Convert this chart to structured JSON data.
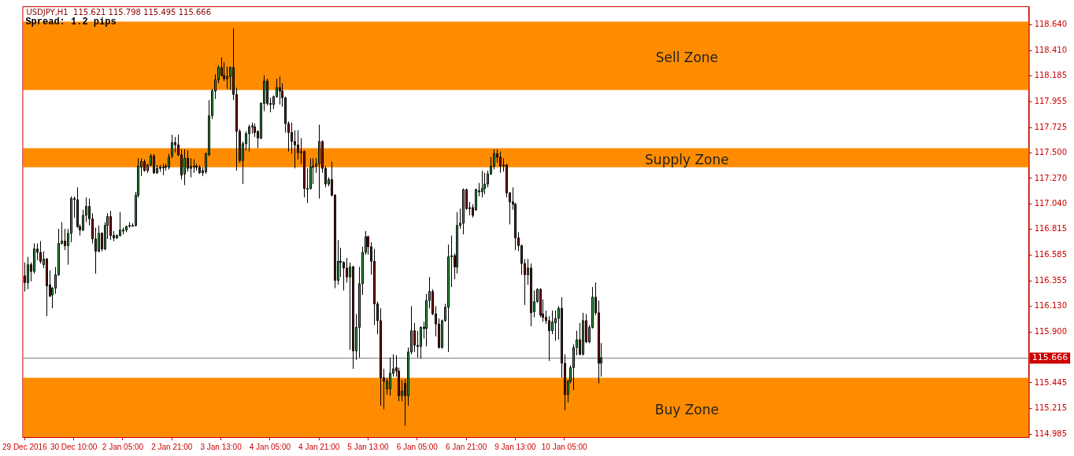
{
  "chart_data": {
    "type": "candlestick",
    "title": "USDJPY,H1  115.621 115.798 115.495 115.666",
    "annotations": [
      "Spread: 1.2 pips"
    ],
    "categories": [
      "29 Dec 2016",
      null,
      null,
      null,
      null,
      null,
      null,
      null,
      null,
      null,
      null,
      null,
      null,
      null,
      null,
      null,
      "30 Dec 10:00",
      null,
      null,
      null,
      null,
      null,
      null,
      null,
      null,
      null,
      null,
      null,
      null,
      null,
      null,
      null,
      "2 Jan 05:00",
      null,
      null,
      null,
      null,
      null,
      null,
      null,
      null,
      null,
      null,
      null,
      null,
      null,
      null,
      null,
      "2 Jan 21:00",
      null,
      null,
      null,
      null,
      null,
      null,
      null,
      null,
      null,
      null,
      null,
      null,
      null,
      null,
      null,
      "3 Jan 13:00",
      null,
      null,
      null,
      null,
      null,
      null,
      null,
      null,
      null,
      null,
      null,
      null,
      null,
      null,
      null,
      "4 Jan 05:00",
      null,
      null,
      null,
      null,
      null,
      null,
      null,
      null,
      null,
      null,
      null,
      null,
      null,
      null,
      null,
      "4 Jan 21:00",
      null,
      null,
      null,
      null,
      null,
      null,
      null,
      null,
      null,
      null,
      null,
      null,
      null,
      null,
      null,
      "5 Jan 13:00",
      null,
      null,
      null,
      null,
      null,
      null,
      null,
      null,
      null,
      null,
      null,
      null,
      null,
      null,
      null,
      "6 Jan 05:00",
      null,
      null,
      null,
      null,
      null,
      null,
      null,
      null,
      null,
      null,
      null,
      null,
      null,
      null,
      null,
      "6 Jan 21:00",
      null,
      null,
      null,
      null,
      null,
      null,
      null,
      null,
      null,
      null,
      null,
      null,
      null,
      null,
      null,
      "9 Jan 13:00",
      null,
      null,
      null,
      null,
      null,
      null,
      null,
      null,
      null,
      null,
      null,
      null,
      null,
      null,
      null,
      "10 Jan 05:00",
      null,
      null,
      null,
      null,
      null,
      null,
      null,
      null,
      null,
      null,
      null,
      null,
      null,
      null,
      null,
      null,
      null,
      null,
      null,
      null,
      null,
      null,
      null,
      null,
      null,
      null,
      null,
      null,
      null,
      null,
      null,
      null,
      null,
      null,
      null,
      null,
      null,
      null,
      null,
      null,
      null,
      null,
      null,
      null,
      null,
      null,
      null,
      null,
      null,
      null,
      null,
      null,
      null,
      null,
      null,
      null,
      null,
      null,
      null,
      null,
      null,
      null,
      null,
      null,
      null,
      null,
      null,
      null,
      null,
      null,
      null,
      null,
      null,
      null,
      null,
      null,
      null,
      null,
      null,
      null,
      null,
      null,
      null,
      null,
      null,
      null,
      null,
      null,
      null,
      null,
      null,
      null,
      null,
      null,
      null,
      null,
      null,
      null,
      null,
      null,
      null,
      null,
      null,
      null,
      null,
      null,
      null,
      null,
      null,
      null,
      null,
      null,
      null,
      null,
      null,
      null,
      null,
      null,
      null,
      null,
      null,
      null,
      null,
      null,
      null,
      null,
      null,
      null,
      null,
      null,
      null,
      null,
      null,
      null,
      null,
      null,
      null,
      null,
      null,
      null,
      null,
      null,
      null,
      null,
      null,
      null,
      null,
      null,
      null,
      null,
      null
    ],
    "ohlc": [
      [
        116.4,
        116.52,
        116.26,
        116.34
      ],
      [
        116.34,
        116.57,
        116.28,
        116.5
      ],
      [
        116.5,
        116.52,
        116.35,
        116.44
      ],
      [
        116.44,
        116.69,
        116.42,
        116.64
      ],
      [
        116.64,
        116.69,
        116.54,
        116.61
      ],
      [
        116.61,
        116.71,
        116.51,
        116.53
      ],
      [
        116.5,
        116.62,
        116.47,
        116.55
      ],
      [
        116.55,
        116.56,
        116.04,
        116.31
      ],
      [
        116.32,
        116.45,
        116.21,
        116.22
      ],
      [
        116.23,
        116.3,
        116.11,
        116.29
      ],
      [
        116.29,
        116.48,
        116.24,
        116.41
      ],
      [
        116.41,
        116.82,
        116.4,
        116.69
      ],
      [
        116.69,
        116.88,
        116.68,
        116.71
      ],
      [
        116.71,
        116.82,
        116.63,
        116.67
      ],
      [
        116.67,
        116.82,
        116.5,
        116.78
      ],
      [
        116.78,
        117.11,
        116.7,
        117.09
      ],
      [
        117.08,
        117.11,
        116.92,
        117.09
      ],
      [
        117.08,
        117.19,
        116.83,
        116.84
      ],
      [
        116.84,
        116.86,
        116.76,
        116.81
      ],
      [
        116.81,
        116.99,
        116.8,
        116.94
      ],
      [
        116.94,
        117.1,
        116.88,
        117.02
      ],
      [
        117.02,
        117.09,
        116.85,
        116.91
      ],
      [
        116.91,
        116.96,
        116.69,
        116.73
      ],
      [
        116.73,
        116.83,
        116.42,
        116.62
      ],
      [
        116.62,
        116.85,
        116.61,
        116.78
      ],
      [
        116.78,
        116.79,
        116.62,
        116.64
      ],
      [
        116.64,
        116.88,
        116.63,
        116.85
      ],
      [
        116.85,
        116.96,
        116.73,
        116.93
      ],
      [
        116.93,
        116.98,
        116.72,
        116.76
      ],
      [
        116.76,
        116.8,
        116.71,
        116.74
      ],
      [
        116.74,
        116.77,
        116.73,
        116.76
      ],
      [
        116.76,
        116.97,
        116.75,
        116.81
      ],
      [
        116.8,
        116.83,
        116.77,
        116.81
      ],
      [
        116.81,
        116.85,
        116.79,
        116.84
      ],
      [
        116.85,
        116.88,
        116.83,
        116.85
      ],
      [
        116.85,
        116.87,
        116.84,
        116.85
      ],
      [
        116.85,
        117.15,
        116.84,
        117.12
      ],
      [
        117.12,
        117.45,
        117.1,
        117.38
      ],
      [
        117.37,
        117.45,
        117.29,
        117.42
      ],
      [
        117.42,
        117.44,
        117.33,
        117.34
      ],
      [
        117.34,
        117.4,
        117.32,
        117.39
      ],
      [
        117.39,
        117.49,
        117.38,
        117.47
      ],
      [
        117.47,
        117.49,
        117.31,
        117.32
      ],
      [
        117.32,
        117.39,
        117.31,
        117.36
      ],
      [
        117.36,
        117.39,
        117.33,
        117.37
      ],
      [
        117.37,
        117.4,
        117.3,
        117.37
      ],
      [
        117.37,
        117.4,
        117.34,
        117.38
      ],
      [
        117.37,
        117.49,
        117.35,
        117.46
      ],
      [
        117.47,
        117.66,
        117.45,
        117.59
      ],
      [
        117.59,
        117.64,
        117.5,
        117.57
      ],
      [
        117.57,
        117.66,
        117.47,
        117.48
      ],
      [
        117.48,
        117.53,
        117.26,
        117.3
      ],
      [
        117.31,
        117.53,
        117.21,
        117.45
      ],
      [
        117.45,
        117.52,
        117.33,
        117.36
      ],
      [
        117.36,
        117.45,
        117.28,
        117.38
      ],
      [
        117.38,
        117.44,
        117.32,
        117.38
      ],
      [
        117.38,
        117.4,
        117.34,
        117.37
      ],
      [
        117.37,
        117.39,
        117.31,
        117.32
      ],
      [
        117.34,
        117.37,
        117.29,
        117.32
      ],
      [
        117.33,
        117.5,
        117.31,
        117.49
      ],
      [
        117.48,
        117.97,
        117.47,
        117.83
      ],
      [
        117.83,
        118.07,
        117.8,
        118.05
      ],
      [
        118.05,
        118.2,
        117.98,
        118.15
      ],
      [
        118.15,
        118.28,
        118.12,
        118.26
      ],
      [
        118.26,
        118.35,
        118.18,
        118.19
      ],
      [
        118.19,
        118.31,
        118.14,
        118.16
      ],
      [
        118.16,
        118.27,
        118.07,
        118.18
      ],
      [
        118.18,
        118.27,
        118.06,
        118.26
      ],
      [
        118.26,
        118.61,
        117.97,
        118.02
      ],
      [
        118.02,
        118.08,
        117.34,
        117.69
      ],
      [
        117.69,
        117.71,
        117.41,
        117.43
      ],
      [
        117.43,
        117.6,
        117.22,
        117.58
      ],
      [
        117.58,
        117.69,
        117.52,
        117.67
      ],
      [
        117.67,
        117.75,
        117.51,
        117.73
      ],
      [
        117.73,
        117.77,
        117.67,
        117.74
      ],
      [
        117.73,
        117.76,
        117.64,
        117.68
      ],
      [
        117.69,
        117.7,
        117.54,
        117.63
      ],
      [
        117.63,
        117.95,
        117.62,
        117.94
      ],
      [
        117.94,
        118.19,
        117.87,
        118.14
      ],
      [
        118.14,
        118.16,
        117.92,
        117.94
      ],
      [
        117.94,
        117.99,
        117.86,
        117.93
      ],
      [
        117.93,
        118.01,
        117.89,
        118.0
      ],
      [
        118.0,
        118.16,
        117.99,
        118.08
      ],
      [
        118.08,
        118.18,
        117.93,
        118.05
      ],
      [
        118.05,
        118.12,
        117.91,
        117.99
      ],
      [
        117.99,
        118.0,
        117.68,
        117.76
      ],
      [
        117.76,
        117.78,
        117.51,
        117.68
      ],
      [
        117.68,
        117.77,
        117.49,
        117.6
      ],
      [
        117.6,
        117.7,
        117.36,
        117.57
      ],
      [
        117.57,
        117.7,
        117.44,
        117.5
      ],
      [
        117.5,
        117.63,
        117.4,
        117.51
      ],
      [
        117.51,
        117.52,
        117.1,
        117.18
      ],
      [
        117.18,
        117.36,
        117.05,
        117.18
      ],
      [
        117.18,
        117.45,
        117.17,
        117.37
      ],
      [
        117.37,
        117.45,
        117.22,
        117.38
      ],
      [
        117.38,
        117.45,
        117.32,
        117.4
      ],
      [
        117.4,
        117.75,
        117.09,
        117.6
      ],
      [
        117.6,
        117.61,
        117.32,
        117.36
      ],
      [
        117.36,
        117.38,
        117.19,
        117.22
      ],
      [
        117.22,
        117.28,
        117.2,
        117.26
      ],
      [
        117.26,
        117.42,
        117.11,
        117.12
      ],
      [
        117.12,
        117.13,
        116.29,
        116.36
      ],
      [
        116.36,
        116.72,
        116.32,
        116.53
      ],
      [
        116.53,
        116.65,
        116.39,
        116.52
      ],
      [
        116.52,
        116.53,
        116.27,
        116.47
      ],
      [
        116.47,
        116.56,
        116.34,
        116.39
      ],
      [
        116.39,
        116.52,
        115.74,
        116.48
      ],
      [
        116.48,
        116.49,
        115.57,
        115.73
      ],
      [
        115.73,
        116.06,
        115.65,
        115.94
      ],
      [
        115.94,
        116.48,
        115.67,
        116.33
      ],
      [
        116.33,
        116.66,
        116.23,
        116.61
      ],
      [
        116.61,
        116.8,
        116.59,
        116.75
      ],
      [
        116.75,
        116.76,
        116.59,
        116.66
      ],
      [
        116.66,
        116.7,
        116.41,
        116.53
      ],
      [
        116.53,
        116.64,
        115.96,
        116.15
      ],
      [
        116.15,
        116.17,
        115.88,
        116.0
      ],
      [
        116.0,
        116.11,
        115.24,
        115.49
      ],
      [
        115.49,
        115.57,
        115.21,
        115.46
      ],
      [
        115.39,
        115.49,
        115.34,
        115.46
      ],
      [
        115.39,
        115.67,
        115.33,
        115.53
      ],
      [
        115.53,
        115.7,
        115.5,
        115.57
      ],
      [
        115.58,
        115.69,
        115.5,
        115.55
      ],
      [
        115.55,
        115.58,
        115.28,
        115.33
      ],
      [
        115.33,
        115.47,
        115.28,
        115.37
      ],
      [
        115.44,
        115.48,
        115.06,
        115.33
      ],
      [
        115.33,
        115.76,
        115.24,
        115.72
      ],
      [
        115.72,
        116.13,
        115.7,
        115.91
      ],
      [
        115.91,
        115.98,
        115.72,
        115.78
      ],
      [
        115.78,
        115.91,
        115.67,
        115.77
      ],
      [
        115.77,
        115.95,
        115.66,
        115.94
      ],
      [
        115.94,
        115.99,
        115.84,
        115.93
      ],
      [
        115.93,
        116.24,
        115.77,
        116.18
      ],
      [
        116.18,
        116.39,
        116.11,
        116.26
      ],
      [
        116.26,
        116.28,
        116.05,
        116.06
      ],
      [
        116.06,
        116.13,
        115.86,
        115.97
      ],
      [
        115.97,
        116.02,
        115.75,
        115.76
      ],
      [
        115.76,
        116.01,
        115.75,
        116.0
      ],
      [
        116.0,
        116.15,
        115.99,
        116.12
      ],
      [
        116.12,
        116.68,
        115.72,
        116.57
      ],
      [
        116.57,
        116.76,
        116.3,
        116.58
      ],
      [
        116.58,
        116.6,
        116.37,
        116.48
      ],
      [
        116.48,
        116.97,
        116.42,
        116.85
      ],
      [
        116.85,
        117.0,
        116.82,
        116.87
      ],
      [
        116.87,
        117.18,
        116.77,
        117.17
      ],
      [
        117.17,
        117.18,
        116.99,
        117.0
      ],
      [
        117.0,
        117.06,
        116.94,
        117.01
      ],
      [
        117.01,
        117.04,
        116.92,
        116.94
      ],
      [
        116.99,
        117.18,
        116.98,
        117.17
      ],
      [
        117.15,
        117.23,
        117.11,
        117.16
      ],
      [
        117.15,
        117.34,
        117.1,
        117.18
      ],
      [
        117.18,
        117.32,
        117.13,
        117.22
      ],
      [
        117.22,
        117.34,
        117.19,
        117.31
      ],
      [
        117.31,
        117.46,
        117.3,
        117.38
      ],
      [
        117.38,
        117.53,
        117.35,
        117.49
      ],
      [
        117.49,
        117.53,
        117.41,
        117.46
      ],
      [
        117.46,
        117.51,
        117.32,
        117.38
      ],
      [
        117.38,
        117.45,
        117.33,
        117.39
      ],
      [
        117.39,
        117.4,
        117.1,
        117.14
      ],
      [
        117.14,
        117.15,
        116.86,
        117.06
      ],
      [
        117.06,
        117.19,
        116.99,
        117.04
      ],
      [
        117.04,
        117.05,
        116.63,
        116.74
      ],
      [
        116.74,
        116.79,
        116.62,
        116.67
      ],
      [
        116.67,
        116.68,
        116.41,
        116.51
      ],
      [
        116.51,
        116.55,
        116.14,
        116.41
      ],
      [
        116.41,
        116.55,
        116.32,
        116.47
      ],
      [
        116.47,
        116.51,
        115.95,
        116.07
      ],
      [
        116.08,
        116.27,
        116.03,
        116.17
      ],
      [
        116.17,
        116.29,
        116.16,
        116.28
      ],
      [
        116.28,
        116.29,
        116.03,
        116.05
      ],
      [
        116.06,
        116.19,
        115.99,
        116.03
      ],
      [
        116.03,
        116.09,
        115.97,
        116.0
      ],
      [
        116.0,
        116.04,
        115.64,
        115.91
      ],
      [
        115.91,
        116.09,
        115.88,
        115.99
      ],
      [
        115.98,
        116.09,
        115.82,
        116.02
      ],
      [
        116.02,
        116.13,
        115.83,
        116.11
      ],
      [
        116.11,
        116.21,
        115.49,
        115.62
      ],
      [
        115.62,
        115.7,
        115.2,
        115.34
      ],
      [
        115.34,
        115.47,
        115.27,
        115.46
      ],
      [
        115.46,
        115.6,
        115.44,
        115.58
      ],
      [
        115.58,
        115.79,
        115.38,
        115.76
      ],
      [
        115.76,
        115.91,
        115.69,
        115.83
      ],
      [
        115.83,
        115.98,
        115.69,
        115.7
      ],
      [
        115.7,
        116.07,
        115.69,
        116.0
      ],
      [
        116.0,
        116.06,
        115.8,
        115.81
      ],
      [
        115.81,
        115.96,
        115.8,
        115.94
      ],
      [
        115.94,
        116.3,
        115.93,
        116.21
      ],
      [
        116.21,
        116.34,
        116.05,
        116.07
      ],
      [
        116.07,
        116.18,
        115.44,
        115.62
      ],
      [
        115.62,
        115.8,
        115.5,
        115.67
      ],
      null,
      null,
      null,
      null,
      null,
      null,
      null,
      null,
      null,
      null,
      null,
      null,
      null,
      null,
      null,
      null,
      null,
      null,
      null,
      null,
      null,
      null,
      null,
      null,
      null,
      null,
      null,
      null,
      null,
      null,
      null,
      null,
      null,
      null,
      null,
      null,
      null,
      null,
      null,
      null,
      null,
      null,
      null,
      null,
      null,
      null,
      null,
      null,
      null,
      null,
      null,
      null,
      null,
      null,
      null,
      null,
      null,
      null,
      null,
      null,
      null,
      null,
      null,
      null,
      null,
      null,
      null,
      null,
      null,
      null,
      null,
      null,
      null,
      null,
      null,
      null,
      null,
      null,
      null,
      null,
      null,
      null,
      null,
      null,
      null,
      null,
      null,
      null,
      null,
      null,
      null,
      null,
      null,
      null,
      null,
      null,
      null,
      null,
      null,
      null,
      null,
      null,
      null,
      null,
      null,
      null,
      null,
      null,
      null,
      null,
      null,
      null,
      null,
      null,
      null,
      null,
      null,
      null,
      null,
      null,
      null,
      null,
      null,
      null,
      null,
      null,
      null,
      null,
      null,
      null,
      null,
      null,
      null,
      null,
      null,
      null,
      null,
      null,
      null
    ],
    "ylim": [
      114.96,
      118.8
    ],
    "yticks": [
      {
        "value": 118.64,
        "label": "118.640"
      },
      {
        "value": 118.41,
        "label": "118.410"
      },
      118.185,
      117.955,
      117.725,
      {
        "value": 117.5,
        "label": "117.500"
      },
      {
        "value": 117.27,
        "label": "117.270"
      },
      {
        "value": 117.04,
        "label": "117.040"
      },
      116.815,
      116.585,
      116.355,
      {
        "value": 116.13,
        "label": "116.130"
      },
      {
        "value": 115.9,
        "label": "115.900"
      },
      115.445,
      115.215,
      114.985
    ],
    "bands": [
      {
        "axis": "y",
        "from": 118.06,
        "to": 118.67,
        "label": "Sell Zone",
        "color": "#ff8c00"
      },
      {
        "axis": "y",
        "from": 117.37,
        "to": 117.54,
        "label": "Supply Zone",
        "color": "#ff8c00"
      },
      {
        "axis": "y",
        "from": 114.96,
        "to": 115.49,
        "label": "Buy Zone",
        "color": "#ff8c00"
      }
    ],
    "ref_lines": [
      {
        "axis": "y",
        "value": 115.666,
        "label": "115.666",
        "color": "#808080"
      }
    ],
    "grid": false,
    "legend": false
  }
}
